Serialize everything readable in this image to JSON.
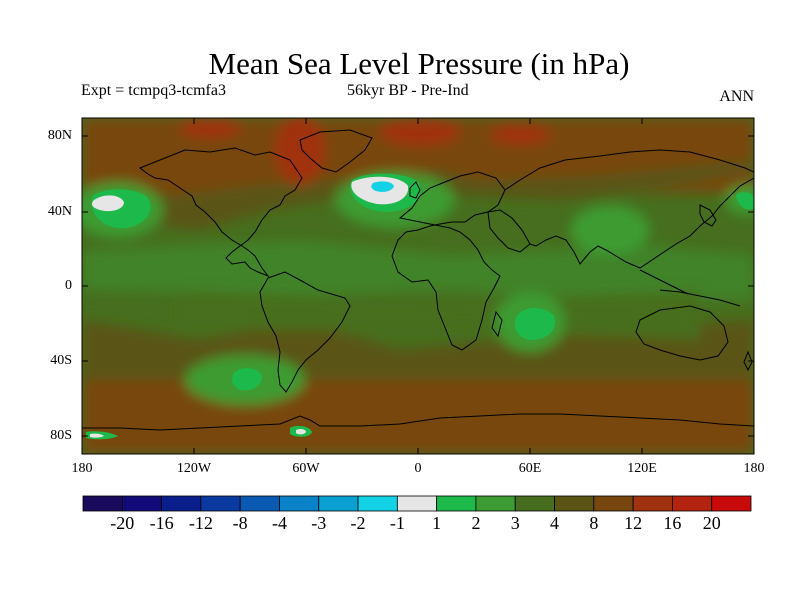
{
  "title": "Mean Sea Level Pressure (in hPa)",
  "subtitle_left": "Expt = tcmpq3-tcmfa3",
  "subtitle_center": "56kyr BP - Pre-Ind",
  "subtitle_right": "ANN",
  "lat_ticks": [
    "80N",
    "40N",
    "0",
    "40S",
    "80S"
  ],
  "lon_ticks": [
    "180",
    "120W",
    "60W",
    "0",
    "60E",
    "120E",
    "180"
  ],
  "colorbar": {
    "labels": [
      "-20",
      "-16",
      "-12",
      "-8",
      "-4",
      "-3",
      "-2",
      "-1",
      "1",
      "2",
      "3",
      "4",
      "8",
      "12",
      "16",
      "20"
    ],
    "colors": [
      "#1a0a5e",
      "#120a78",
      "#0a1e8c",
      "#0a3aa0",
      "#0a5ab4",
      "#0a82c8",
      "#0aa0d2",
      "#14d2e6",
      "#e6e6e6",
      "#1eb94b",
      "#3c9b32",
      "#466e1e",
      "#5a5514",
      "#78460f",
      "#a0320f",
      "#b4230f",
      "#c80a0a"
    ]
  }
}
